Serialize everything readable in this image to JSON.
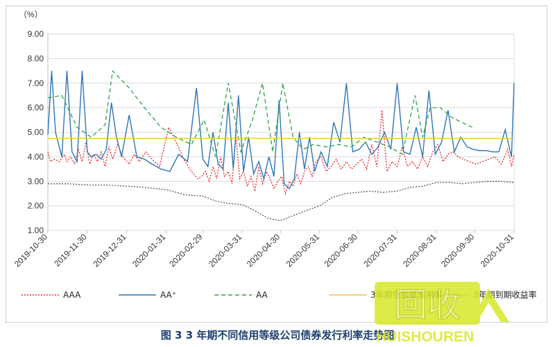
{
  "caption": "图 3  3 年期不同信用等级公司债券发行利率走势图",
  "watermark": {
    "text_main": "回收",
    "text_sub": "HUISHOUREN"
  },
  "chart_data": {
    "type": "line",
    "unit_label": "（%）",
    "ylim": [
      1.0,
      9.0
    ],
    "yticks": [
      "1.00",
      "2.00",
      "3.00",
      "4.00",
      "5.00",
      "6.00",
      "7.00",
      "8.00",
      "9.00"
    ],
    "xlim": [
      "2019-10-30",
      "2020-10-31"
    ],
    "xticks": [
      "2019-10-30",
      "2019-11-30",
      "2019-12-31",
      "2020-01-31",
      "2020-02-29",
      "2020-03-31",
      "2020-04-30",
      "2020-05-31",
      "2020-06-30",
      "2020-07-31",
      "2020-08-31",
      "2020-09-30",
      "2020-10-31"
    ],
    "grid": true,
    "legend_position": "bottom",
    "series": [
      {
        "name": "AAA",
        "color": "#e8262a",
        "style": "dotted",
        "x": [
          "2019-10-30",
          "2019-11-01",
          "2019-11-04",
          "2019-11-08",
          "2019-11-12",
          "2019-11-14",
          "2019-11-17",
          "2019-11-20",
          "2019-11-23",
          "2019-11-26",
          "2019-11-29",
          "2019-12-02",
          "2019-12-05",
          "2019-12-08",
          "2019-12-11",
          "2019-12-14",
          "2019-12-17",
          "2019-12-20",
          "2019-12-24",
          "2019-12-28",
          "2020-01-02",
          "2020-01-06",
          "2020-01-10",
          "2020-01-15",
          "2020-01-20",
          "2020-01-26",
          "2020-02-02",
          "2020-02-08",
          "2020-02-14",
          "2020-02-20",
          "2020-02-25",
          "2020-02-28",
          "2020-03-02",
          "2020-03-05",
          "2020-03-08",
          "2020-03-11",
          "2020-03-14",
          "2020-03-17",
          "2020-03-20",
          "2020-03-23",
          "2020-03-26",
          "2020-03-29",
          "2020-04-01",
          "2020-04-04",
          "2020-04-07",
          "2020-04-10",
          "2020-04-13",
          "2020-04-16",
          "2020-04-19",
          "2020-04-22",
          "2020-04-25",
          "2020-04-28",
          "2020-05-01",
          "2020-05-04",
          "2020-05-07",
          "2020-05-10",
          "2020-05-13",
          "2020-05-16",
          "2020-05-19",
          "2020-05-22",
          "2020-05-25",
          "2020-05-28",
          "2020-06-01",
          "2020-06-05",
          "2020-06-09",
          "2020-06-13",
          "2020-06-17",
          "2020-06-21",
          "2020-06-25",
          "2020-06-29",
          "2020-07-03",
          "2020-07-07",
          "2020-07-11",
          "2020-07-15",
          "2020-07-19",
          "2020-07-23",
          "2020-07-27",
          "2020-07-31",
          "2020-08-04",
          "2020-08-08",
          "2020-08-12",
          "2020-08-16",
          "2020-08-20",
          "2020-08-24",
          "2020-08-28",
          "2020-09-01",
          "2020-09-05",
          "2020-09-09",
          "2020-09-13",
          "2020-09-17",
          "2020-09-21",
          "2020-09-26",
          "2020-10-01",
          "2020-10-06",
          "2020-10-11",
          "2020-10-16",
          "2020-10-21",
          "2020-10-26",
          "2020-10-29",
          "2020-10-31"
        ],
        "y": [
          4.2,
          3.8,
          3.9,
          3.8,
          4.1,
          3.8,
          4.0,
          3.7,
          4.3,
          3.8,
          4.6,
          3.7,
          4.1,
          3.8,
          4.2,
          3.6,
          4.4,
          3.9,
          4.5,
          4.0,
          3.7,
          4.1,
          3.8,
          4.2,
          3.9,
          3.6,
          5.2,
          4.6,
          3.9,
          3.4,
          3.1,
          3.2,
          3.4,
          3.0,
          3.6,
          3.1,
          4.0,
          3.2,
          3.4,
          2.9,
          4.9,
          3.1,
          3.4,
          2.8,
          3.2,
          2.6,
          3.6,
          2.9,
          3.4,
          3.1,
          2.7,
          3.0,
          3.2,
          2.5,
          3.0,
          2.8,
          3.3,
          2.9,
          3.4,
          3.6,
          3.2,
          3.8,
          4.0,
          3.4,
          3.6,
          3.9,
          3.5,
          3.8,
          3.5,
          3.7,
          3.9,
          3.5,
          4.5,
          3.6,
          5.9,
          3.4,
          3.8,
          3.6,
          4.4,
          3.6,
          3.8,
          3.5,
          4.0,
          3.6,
          4.2,
          4.5,
          3.8,
          4.1,
          4.2,
          4.0,
          3.9,
          3.8,
          3.7,
          3.8,
          3.9,
          4.0,
          3.7,
          4.3,
          3.6,
          4.1
        ]
      },
      {
        "name": "AA⁺",
        "color": "#2e75b6",
        "style": "solid",
        "x": [
          "2019-10-30",
          "2019-11-02",
          "2019-11-05",
          "2019-11-10",
          "2019-11-14",
          "2019-11-18",
          "2019-11-22",
          "2019-11-26",
          "2019-11-30",
          "2019-12-03",
          "2019-12-07",
          "2019-12-11",
          "2019-12-15",
          "2019-12-19",
          "2019-12-23",
          "2019-12-27",
          "2020-01-02",
          "2020-01-08",
          "2020-01-14",
          "2020-01-20",
          "2020-01-27",
          "2020-02-03",
          "2020-02-10",
          "2020-02-17",
          "2020-02-24",
          "2020-02-29",
          "2020-03-04",
          "2020-03-08",
          "2020-03-12",
          "2020-03-16",
          "2020-03-20",
          "2020-03-24",
          "2020-03-28",
          "2020-04-01",
          "2020-04-05",
          "2020-04-09",
          "2020-04-13",
          "2020-04-17",
          "2020-04-21",
          "2020-04-25",
          "2020-04-29",
          "2020-05-03",
          "2020-05-07",
          "2020-05-11",
          "2020-05-15",
          "2020-05-19",
          "2020-05-23",
          "2020-05-27",
          "2020-06-01",
          "2020-06-06",
          "2020-06-11",
          "2020-06-16",
          "2020-06-21",
          "2020-06-26",
          "2020-07-01",
          "2020-07-06",
          "2020-07-11",
          "2020-07-16",
          "2020-07-21",
          "2020-07-26",
          "2020-07-31",
          "2020-08-05",
          "2020-08-10",
          "2020-08-15",
          "2020-08-20",
          "2020-08-25",
          "2020-08-30",
          "2020-09-04",
          "2020-09-09",
          "2020-09-14",
          "2020-09-19",
          "2020-09-24",
          "2020-09-29",
          "2020-10-04",
          "2020-10-09",
          "2020-10-14",
          "2020-10-19",
          "2020-10-24",
          "2020-10-29",
          "2020-10-31"
        ],
        "y": [
          4.9,
          7.5,
          5.0,
          4.0,
          7.5,
          4.2,
          3.8,
          7.5,
          4.2,
          4.0,
          4.1,
          3.9,
          4.3,
          6.2,
          4.8,
          4.0,
          5.7,
          4.0,
          3.9,
          3.7,
          3.5,
          3.4,
          4.1,
          3.8,
          6.8,
          3.9,
          3.6,
          5.0,
          3.7,
          3.5,
          6.2,
          3.5,
          6.5,
          3.4,
          4.8,
          3.3,
          3.8,
          3.1,
          4.0,
          3.2,
          6.3,
          2.9,
          2.7,
          3.1,
          5.0,
          3.5,
          4.8,
          3.4,
          4.2,
          3.6,
          5.4,
          4.6,
          7.0,
          4.2,
          4.3,
          4.6,
          4.1,
          4.4,
          5.0,
          4.3,
          7.0,
          4.2,
          4.1,
          5.2,
          4.0,
          6.7,
          4.1,
          4.6,
          5.9,
          4.2,
          4.8,
          4.4,
          4.3,
          4.25,
          4.25,
          4.2,
          4.2,
          5.1,
          4.0,
          7.0
        ]
      },
      {
        "name": "AA",
        "color": "#2ca24a",
        "style": "dashed",
        "x": [
          "2019-10-30",
          "2019-11-10",
          "2019-11-22",
          "2019-12-03",
          "2019-12-14",
          "2019-12-20",
          "2020-01-02",
          "2020-01-14",
          "2020-01-27",
          "2020-02-08",
          "2020-02-20",
          "2020-03-01",
          "2020-03-10",
          "2020-03-20",
          "2020-03-30",
          "2020-04-08",
          "2020-04-16",
          "2020-04-24",
          "2020-05-02",
          "2020-05-10",
          "2020-05-18",
          "2020-05-26",
          "2020-06-05",
          "2020-06-15",
          "2020-06-25",
          "2020-07-05",
          "2020-07-15",
          "2020-07-25",
          "2020-08-04",
          "2020-08-14",
          "2020-08-20",
          "2020-08-26",
          "2020-09-03",
          "2020-09-12",
          "2020-09-20",
          "2020-09-28"
        ],
        "y": [
          6.4,
          6.5,
          5.2,
          4.8,
          5.3,
          7.5,
          6.8,
          6.0,
          5.2,
          4.8,
          4.5,
          5.5,
          4.0,
          7.0,
          4.2,
          5.5,
          7.0,
          4.2,
          7.0,
          4.8,
          4.3,
          4.5,
          4.4,
          4.5,
          4.4,
          4.8,
          4.6,
          4.4,
          4.1,
          6.5,
          4.8,
          6.0,
          6.0,
          5.6,
          5.4,
          5.2
        ]
      },
      {
        "name": "3年期贷款基准利率",
        "color": "#f5c242",
        "style": "solid",
        "x": [
          "2019-10-30",
          "2020-10-31"
        ],
        "y": [
          4.75,
          4.75
        ]
      },
      {
        "name": "3年期到期收益率",
        "color": "#555555",
        "style": "dotted",
        "x": [
          "2019-10-30",
          "2019-11-15",
          "2019-12-01",
          "2019-12-15",
          "2020-01-01",
          "2020-01-15",
          "2020-02-01",
          "2020-02-15",
          "2020-02-29",
          "2020-03-10",
          "2020-03-20",
          "2020-03-31",
          "2020-04-10",
          "2020-04-20",
          "2020-04-30",
          "2020-05-10",
          "2020-05-20",
          "2020-05-31",
          "2020-06-10",
          "2020-06-20",
          "2020-06-30",
          "2020-07-10",
          "2020-07-20",
          "2020-07-31",
          "2020-08-10",
          "2020-08-20",
          "2020-08-31",
          "2020-09-10",
          "2020-09-20",
          "2020-09-30",
          "2020-10-10",
          "2020-10-20",
          "2020-10-31"
        ],
        "y": [
          2.9,
          2.9,
          2.85,
          2.85,
          2.8,
          2.75,
          2.65,
          2.45,
          2.4,
          2.2,
          2.1,
          2.05,
          1.8,
          1.5,
          1.4,
          1.6,
          1.8,
          2.0,
          2.35,
          2.5,
          2.55,
          2.6,
          2.55,
          2.6,
          2.75,
          2.8,
          2.95,
          2.95,
          2.9,
          2.95,
          3.0,
          3.0,
          2.95
        ]
      }
    ]
  }
}
